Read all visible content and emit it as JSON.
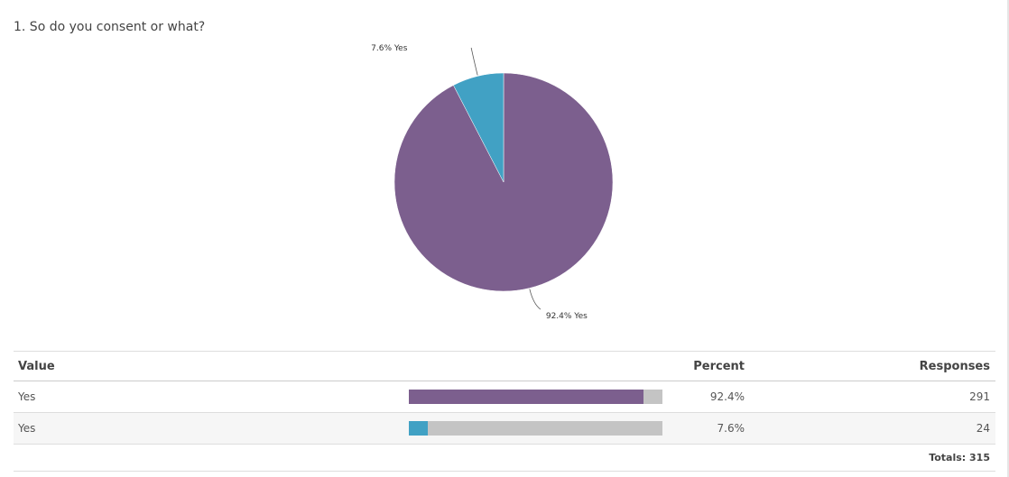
{
  "question": {
    "title": "1. So do you consent or what?"
  },
  "colors": {
    "slice_1": "#7c5f8e",
    "slice_2": "#41a1c4",
    "bar_track": "#c4c4c4"
  },
  "chart_data": {
    "type": "pie",
    "title": "",
    "slices": [
      {
        "label": "92.4% Yes",
        "category": "Yes",
        "percent": 92.4,
        "responses": 291,
        "color": "#7c5f8e"
      },
      {
        "label": "7.6% Yes",
        "category": "Yes",
        "percent": 7.6,
        "responses": 24,
        "color": "#41a1c4"
      }
    ]
  },
  "table": {
    "headers": {
      "value": "Value",
      "percent": "Percent",
      "responses": "Responses"
    },
    "rows": [
      {
        "value": "Yes",
        "percent_text": "92.4%",
        "percent": 92.4,
        "responses": "291",
        "color": "#7c5f8e"
      },
      {
        "value": "Yes",
        "percent_text": "7.6%",
        "percent": 7.6,
        "responses": "24",
        "color": "#41a1c4"
      }
    ],
    "totals": "Totals: 315"
  }
}
